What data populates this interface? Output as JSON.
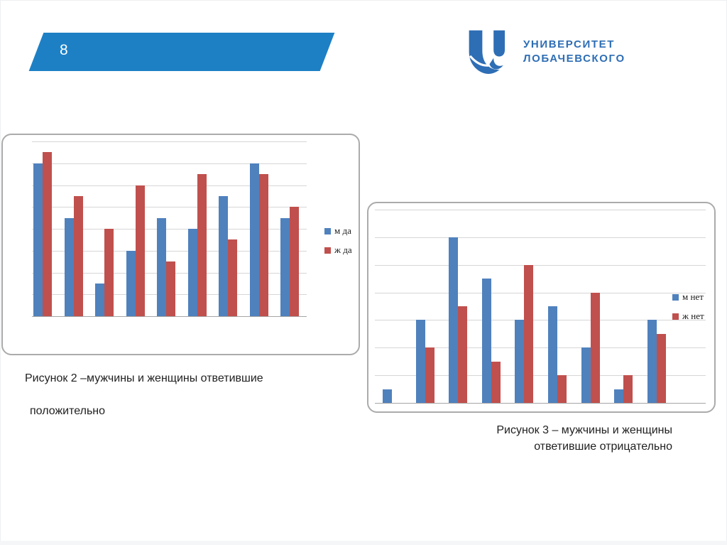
{
  "slide": {
    "number": "8"
  },
  "logo": {
    "line1": "УНИВЕРСИТЕТ",
    "line2": "ЛОБАЧЕВСКОГО",
    "color": "#2e6eb5"
  },
  "colors": {
    "banner_blue": "#1d80c5",
    "bar_blue": "#4f81bd",
    "bar_red": "#c0504d",
    "gridline": "#d6d6d6",
    "card_border": "#ababab",
    "caption_text": "#212121"
  },
  "figures": [
    {
      "caption_line1": "Рисунок 2 –мужчины и женщины ответившие",
      "caption_line2": "положительно"
    },
    {
      "caption_line1": "Рисунок 3 – мужчины и женщины",
      "caption_line2": "ответившие отрицательно"
    }
  ],
  "chart_data": [
    {
      "type": "bar",
      "title": "Рисунок 2 – мужчины и женщины ответившие положительно",
      "group_count": 9,
      "x_tick_labels_visible": false,
      "y_tick_labels_visible": false,
      "series": [
        {
          "name": "м да",
          "color": "#4f81bd",
          "values": [
            14,
            9,
            3,
            6,
            9,
            8,
            11,
            14,
            9
          ]
        },
        {
          "name": "ж да",
          "color": "#c0504d",
          "values": [
            15,
            11,
            8,
            12,
            5,
            13,
            7,
            13,
            10
          ]
        }
      ],
      "ylim": [
        0,
        16
      ],
      "grid_step": 2,
      "grid": true,
      "legend_position": "right"
    },
    {
      "type": "bar",
      "title": "Рисунок 3 – мужчины и женщины ответившие отрицательно",
      "group_count": 9,
      "x_tick_labels_visible": false,
      "y_tick_labels_visible": false,
      "series": [
        {
          "name": "м нет",
          "color": "#4f81bd",
          "values": [
            1,
            6,
            12,
            9,
            6,
            7,
            4,
            1,
            6
          ]
        },
        {
          "name": "ж нет",
          "color": "#c0504d",
          "values": [
            0,
            4,
            7,
            3,
            10,
            2,
            8,
            2,
            5
          ]
        }
      ],
      "ylim": [
        0,
        14
      ],
      "grid_step": 2,
      "grid": true,
      "legend_position": "right"
    }
  ]
}
